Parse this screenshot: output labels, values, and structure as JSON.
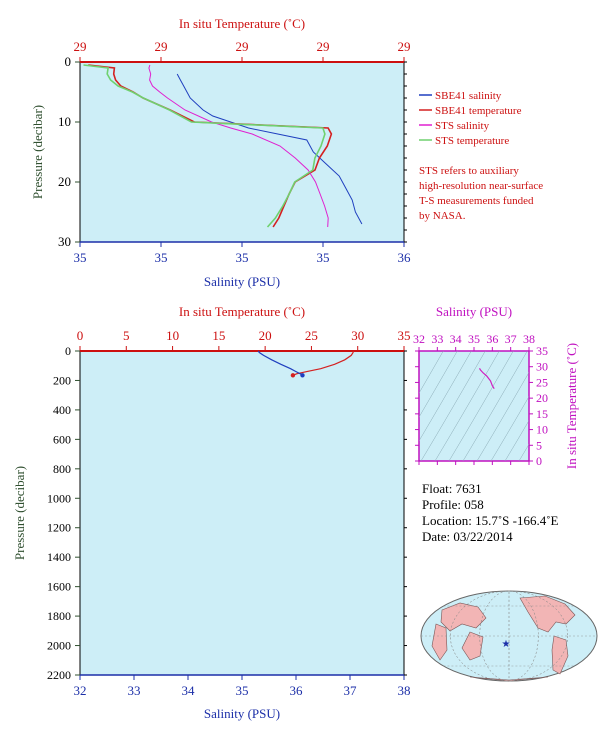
{
  "top_chart": {
    "top_axis_title": "In situ Temperature (˚C)",
    "bottom_axis_title": "Salinity (PSU)",
    "left_axis_title": "Pressure (decibar)",
    "top_tick_labels": [
      "29",
      "29",
      "29",
      "29",
      "29"
    ],
    "bottom_tick_labels": [
      "35",
      "35",
      "35",
      "35",
      "36"
    ],
    "left_tick_labels": [
      "0",
      "10",
      "20",
      "30"
    ],
    "legend": [
      {
        "label": "SBE41 salinity",
        "color": "#1f3fbf"
      },
      {
        "label": "SBE41 temperature",
        "color": "#d42020"
      },
      {
        "label": "STS salinity",
        "color": "#e020d0"
      },
      {
        "label": "STS temperature",
        "color": "#6fd16f"
      }
    ],
    "note_lines": [
      "STS refers to auxiliary",
      "high-resolution near-surface",
      "T-S measurements funded",
      "by NASA."
    ]
  },
  "bottom_chart": {
    "top_axis_title": "In situ Temperature (˚C)",
    "bottom_axis_title": "Salinity (PSU)",
    "left_axis_title": "Pressure (decibar)",
    "top_tick_labels": [
      "0",
      "5",
      "10",
      "15",
      "20",
      "25",
      "30",
      "35"
    ],
    "bottom_tick_labels": [
      "32",
      "33",
      "34",
      "35",
      "36",
      "37",
      "38"
    ],
    "left_tick_labels": [
      "0",
      "200",
      "400",
      "600",
      "800",
      "1000",
      "1200",
      "1400",
      "1600",
      "1800",
      "2000",
      "2200"
    ]
  },
  "ts_inset": {
    "top_axis_title": "Salinity (PSU)",
    "right_axis_title": "In situ Temperature (˚C)",
    "top_tick_labels": [
      "32",
      "33",
      "34",
      "35",
      "36",
      "37",
      "38"
    ],
    "right_tick_labels": [
      "35",
      "30",
      "25",
      "20",
      "15",
      "10",
      "5",
      "0"
    ]
  },
  "float_info": {
    "lines": [
      "Float:  7631",
      "Profile:  058",
      "Location:  15.7˚S  -166.4˚E",
      "Date:  03/22/2014"
    ]
  },
  "colors": {
    "plot_bg": "#cdeef7",
    "temperature_axis": "#cc1010",
    "salinity_axis": "#1c2fa8",
    "pressure_axis": "#2f4f2f",
    "ts_axis": "#c010c0",
    "map_land": "#f2b5b5",
    "map_ocean": "#cdeef7"
  },
  "chart_data": [
    {
      "type": "line",
      "panel": "near-surface profile",
      "title": "",
      "xlabel_top": "In situ Temperature (˚C)",
      "xlabel_bottom": "Salinity (PSU)",
      "ylabel": "Pressure (decibar)",
      "ylim": [
        0,
        30
      ],
      "series": [
        {
          "name": "SBE41 salinity",
          "pressure": [
            2,
            3,
            4,
            6,
            8,
            9,
            11,
            13,
            15,
            17,
            19,
            21,
            23,
            25,
            27
          ],
          "x_frac": [
            0.3,
            0.31,
            0.32,
            0.34,
            0.38,
            0.41,
            0.52,
            0.7,
            0.72,
            0.76,
            0.8,
            0.82,
            0.84,
            0.85,
            0.87
          ]
        },
        {
          "name": "SBE41 temperature",
          "pressure": [
            0.5,
            1,
            2,
            3,
            4,
            5,
            6,
            8,
            10,
            11,
            12,
            14,
            16,
            18,
            20,
            22,
            24,
            26,
            27.5
          ],
          "x_frac": [
            0.02,
            0.1,
            0.1,
            0.11,
            0.13,
            0.17,
            0.2,
            0.28,
            0.35,
            0.76,
            0.77,
            0.76,
            0.74,
            0.73,
            0.67,
            0.65,
            0.63,
            0.61,
            0.59
          ]
        },
        {
          "name": "STS salinity",
          "pressure": [
            0.5,
            1,
            2,
            3,
            4,
            5,
            6,
            8,
            10,
            11,
            12,
            14,
            16,
            18,
            20,
            22,
            24,
            26,
            27.5
          ],
          "x_frac": [
            0.21,
            0.21,
            0.22,
            0.22,
            0.23,
            0.25,
            0.27,
            0.32,
            0.4,
            0.46,
            0.53,
            0.62,
            0.67,
            0.71,
            0.73,
            0.74,
            0.75,
            0.76,
            0.76
          ]
        },
        {
          "name": "STS temperature",
          "pressure": [
            0.5,
            1,
            2,
            3,
            4,
            5,
            6,
            8,
            10,
            11,
            12,
            14,
            16,
            18,
            20,
            22,
            24,
            26,
            27.5
          ],
          "x_frac": [
            0.01,
            0.09,
            0.09,
            0.1,
            0.12,
            0.16,
            0.19,
            0.27,
            0.34,
            0.75,
            0.76,
            0.75,
            0.73,
            0.72,
            0.66,
            0.64,
            0.62,
            0.6,
            0.58
          ]
        }
      ]
    },
    {
      "type": "line",
      "panel": "full-depth profile",
      "title": "",
      "xlabel_top": "In situ Temperature (˚C)",
      "xlabel_bottom": "Salinity (PSU)",
      "ylabel": "Pressure (decibar)",
      "ylim": [
        0,
        2200
      ],
      "xlim_temperature": [
        0,
        35
      ],
      "xlim_salinity": [
        32,
        38
      ],
      "series": [
        {
          "name": "SBE41 temperature",
          "pressure": [
            0,
            10,
            30,
            60,
            90,
            120,
            140,
            155,
            165
          ],
          "values": [
            29.5,
            29.5,
            29.3,
            28.6,
            27.5,
            26.0,
            24.5,
            23.4,
            23.0
          ]
        },
        {
          "name": "SBE41 salinity",
          "pressure": [
            0,
            10,
            30,
            60,
            90,
            120,
            140,
            155,
            165
          ],
          "values": [
            35.3,
            35.32,
            35.4,
            35.55,
            35.72,
            35.9,
            36.0,
            36.08,
            36.12
          ]
        }
      ]
    },
    {
      "type": "line",
      "panel": "T-S diagram",
      "xlabel": "Salinity (PSU)",
      "ylabel": "In situ Temperature (˚C)",
      "xlim": [
        32,
        38
      ],
      "ylim": [
        0,
        35
      ],
      "series": [
        {
          "name": "T-S profile",
          "x": [
            35.3,
            35.35,
            35.5,
            35.7,
            35.9,
            36.0,
            36.1
          ],
          "y": [
            29.5,
            29.0,
            28.0,
            27.0,
            25.5,
            24.0,
            23.0
          ]
        }
      ]
    }
  ]
}
